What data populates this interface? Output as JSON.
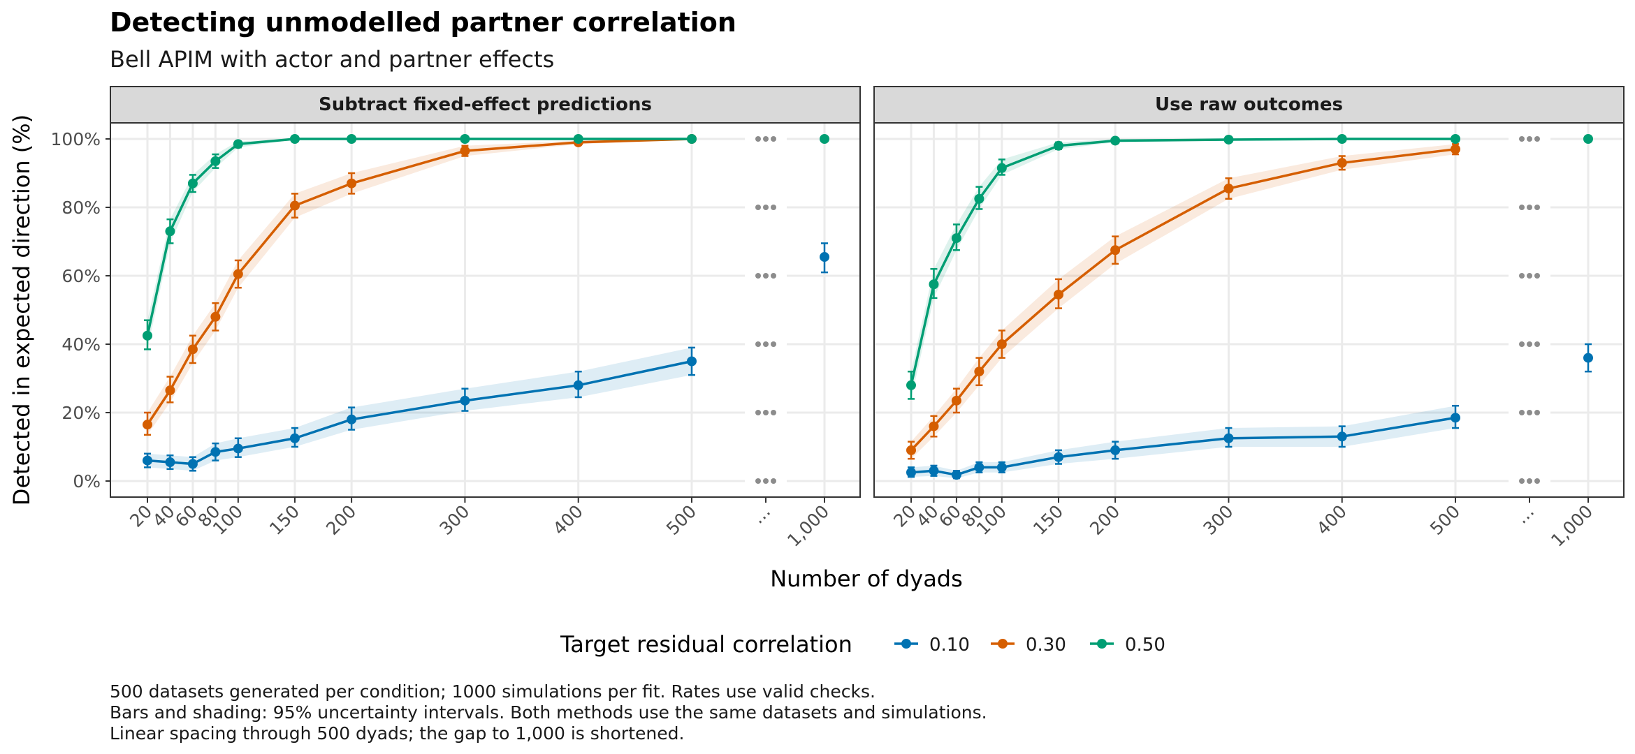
{
  "chart_data": {
    "type": "line",
    "title": "Detecting unmodelled partner correlation",
    "subtitle": "Bell APIM with actor and partner effects",
    "xlabel": "Number of dyads",
    "ylabel": "Detected in expected direction (%)",
    "x_ticks": [
      "20",
      "40",
      "60",
      "80",
      "100",
      "150",
      "200",
      "300",
      "400",
      "500",
      "…",
      "1,000"
    ],
    "y_ticks": [
      "0%",
      "20%",
      "40%",
      "60%",
      "80%",
      "100%"
    ],
    "ylim": [
      0,
      100
    ],
    "x_break": "Linear spacing through 500 dyads; gap to 1,000 shortened",
    "grid": true,
    "legend": {
      "title": "Target residual correlation",
      "position": "bottom",
      "entries": [
        {
          "name": "0.10",
          "color": "#0072B2"
        },
        {
          "name": "0.30",
          "color": "#D55E00"
        },
        {
          "name": "0.50",
          "color": "#009E73"
        }
      ]
    },
    "x": [
      20,
      40,
      60,
      80,
      100,
      150,
      200,
      300,
      400,
      500
    ],
    "panels": [
      {
        "title": "Subtract fixed-effect predictions",
        "series": [
          {
            "name": "0.10",
            "color": "#0072B2",
            "values": [
              6,
              5.5,
              5,
              8.5,
              9.5,
              12.5,
              18,
              23.5,
              28,
              35
            ],
            "lower": [
              4,
              3.5,
              3,
              6,
              7,
              10,
              15,
              20.5,
              24.5,
              31
            ],
            "upper": [
              8,
              7.5,
              7,
              11,
              12.5,
              15.5,
              21.5,
              27,
              32,
              39
            ],
            "value_1000": 65.5,
            "lower_1000": 61,
            "upper_1000": 69.5
          },
          {
            "name": "0.30",
            "color": "#D55E00",
            "values": [
              16.5,
              26.5,
              38.5,
              48,
              60.5,
              80.5,
              87,
              96.5,
              99,
              100
            ],
            "lower": [
              13.5,
              23,
              34.5,
              44,
              56.5,
              77,
              84,
              95,
              98.5,
              99.7
            ],
            "upper": [
              20,
              30.5,
              42.5,
              52,
              64.5,
              84,
              90,
              98,
              99.5,
              100
            ],
            "value_1000": null
          },
          {
            "name": "0.50",
            "color": "#009E73",
            "values": [
              42.5,
              73,
              87,
              93.5,
              98.5,
              100,
              100,
              100,
              100,
              100
            ],
            "lower": [
              38.5,
              69.5,
              84.5,
              91.5,
              97.5,
              99.8,
              99.8,
              99.8,
              99.8,
              99.8
            ],
            "upper": [
              47,
              76.5,
              89.5,
              95.5,
              99.3,
              100,
              100,
              100,
              100,
              100
            ],
            "value_1000": 100,
            "lower_1000": 99.8,
            "upper_1000": 100
          }
        ]
      },
      {
        "title": "Use raw outcomes",
        "series": [
          {
            "name": "0.10",
            "color": "#0072B2",
            "values": [
              2.5,
              3,
              1.8,
              4,
              4,
              7,
              9,
              12.5,
              13,
              18.5
            ],
            "lower": [
              1.2,
              1.5,
              0.8,
              2.5,
              2.5,
              5,
              6.5,
              10,
              10,
              15.5
            ],
            "upper": [
              4,
              4.5,
              3,
              5.5,
              5.5,
              9,
              11.5,
              15.5,
              16,
              22
            ],
            "value_1000": 36,
            "lower_1000": 32,
            "upper_1000": 40
          },
          {
            "name": "0.30",
            "color": "#D55E00",
            "values": [
              9,
              16,
              23.5,
              32,
              40,
              54.5,
              67.5,
              85.5,
              93,
              97
            ],
            "lower": [
              6.5,
              13,
              20,
              28,
              36,
              50.5,
              63.5,
              82.5,
              91,
              95.5
            ],
            "upper": [
              11.5,
              19,
              27,
              36,
              44,
              59,
              71.5,
              88.5,
              95,
              98.5
            ],
            "value_1000": null
          },
          {
            "name": "0.50",
            "color": "#009E73",
            "values": [
              28,
              57.5,
              71,
              82.5,
              91.5,
              98,
              99.5,
              99.8,
              100,
              100
            ],
            "lower": [
              24,
              53.5,
              67.5,
              79.5,
              89.5,
              97,
              99,
              99.5,
              99.8,
              99.8
            ],
            "upper": [
              32,
              62,
              75,
              86,
              94,
              99,
              100,
              100,
              100,
              100
            ],
            "value_1000": 100,
            "lower_1000": 99.8,
            "upper_1000": 100
          }
        ]
      }
    ]
  },
  "caption": [
    "500 datasets generated per condition; 1000 simulations per fit. Rates use valid checks.",
    "Bars and shading: 95% uncertainty intervals. Both methods use the same datasets and simulations.",
    "Linear spacing through 500 dyads; the gap to 1,000 is shortened."
  ]
}
